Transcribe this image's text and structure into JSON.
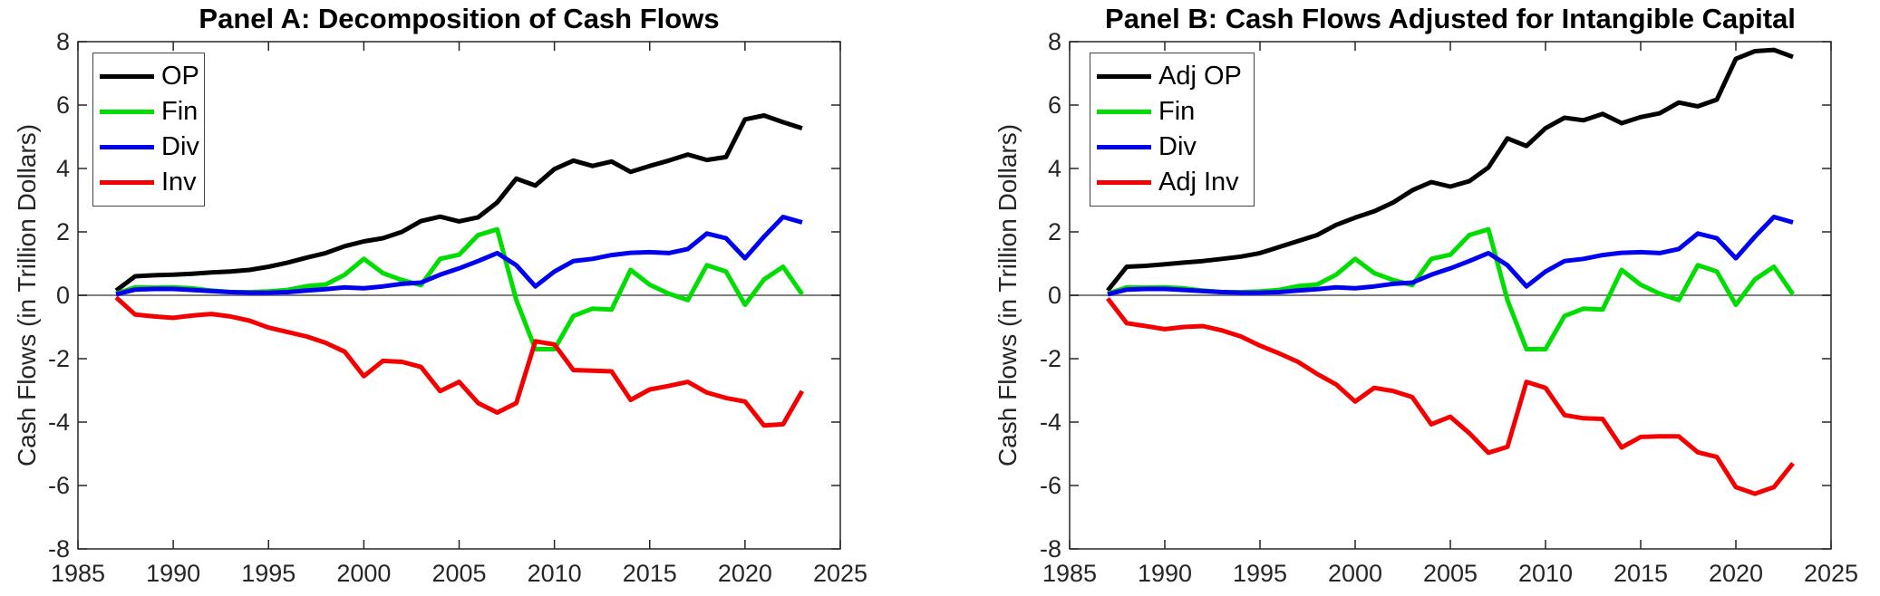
{
  "figure": {
    "background": "#ffffff",
    "axis_color": "#262626",
    "zero_line_color": "#808080",
    "ylabel": "Cash Flows (in Trillion Dollars)"
  },
  "chart_data": [
    {
      "type": "line",
      "panel": "A",
      "title": "Panel A: Decomposition of Cash Flows",
      "xlabel": "",
      "ylabel": "Cash Flows (in Trillion Dollars)",
      "xlim": [
        1985,
        2025
      ],
      "ylim": [
        -8,
        8
      ],
      "xticks": [
        1985,
        1990,
        1995,
        2000,
        2005,
        2010,
        2015,
        2020,
        2025
      ],
      "yticks": [
        -8,
        -6,
        -4,
        -2,
        0,
        2,
        4,
        6,
        8
      ],
      "grid": false,
      "zero_line": true,
      "legend_position": "top-left",
      "x": [
        1987,
        1988,
        1989,
        1990,
        1991,
        1992,
        1993,
        1994,
        1995,
        1996,
        1997,
        1998,
        1999,
        2000,
        2001,
        2002,
        2003,
        2004,
        2005,
        2006,
        2007,
        2008,
        2009,
        2010,
        2011,
        2012,
        2013,
        2014,
        2015,
        2016,
        2017,
        2018,
        2019,
        2020,
        2021,
        2022,
        2023
      ],
      "series": [
        {
          "name": "OP",
          "color": "#000000",
          "values": [
            0.15,
            0.6,
            0.63,
            0.65,
            0.68,
            0.72,
            0.75,
            0.8,
            0.9,
            1.03,
            1.19,
            1.33,
            1.55,
            1.7,
            1.8,
            2.0,
            2.34,
            2.48,
            2.33,
            2.46,
            2.93,
            3.68,
            3.46,
            3.98,
            4.25,
            4.08,
            4.22,
            3.89,
            4.08,
            4.25,
            4.44,
            4.27,
            4.36,
            5.55,
            5.67,
            5.46,
            5.27
          ]
        },
        {
          "name": "Fin",
          "color": "#00dd00",
          "values": [
            0.05,
            0.25,
            0.24,
            0.25,
            0.22,
            0.15,
            0.1,
            0.1,
            0.12,
            0.17,
            0.29,
            0.34,
            0.65,
            1.15,
            0.7,
            0.48,
            0.32,
            1.15,
            1.28,
            1.9,
            2.08,
            -0.15,
            -1.7,
            -1.7,
            -0.65,
            -0.42,
            -0.45,
            0.8,
            0.33,
            0.05,
            -0.15,
            0.95,
            0.75,
            -0.3,
            0.5,
            0.9,
            0.03
          ]
        },
        {
          "name": "Div",
          "color": "#0000f0",
          "values": [
            0.03,
            0.18,
            0.2,
            0.2,
            0.17,
            0.13,
            0.1,
            0.08,
            0.08,
            0.1,
            0.15,
            0.19,
            0.25,
            0.22,
            0.28,
            0.36,
            0.4,
            0.65,
            0.85,
            1.08,
            1.33,
            0.95,
            0.28,
            0.75,
            1.08,
            1.15,
            1.27,
            1.34,
            1.36,
            1.33,
            1.46,
            1.95,
            1.8,
            1.17,
            1.85,
            2.47,
            2.3
          ]
        },
        {
          "name": "Inv",
          "color": "#f50000",
          "values": [
            -0.07,
            -0.61,
            -0.67,
            -0.71,
            -0.64,
            -0.59,
            -0.67,
            -0.8,
            -1.02,
            -1.16,
            -1.3,
            -1.5,
            -1.78,
            -2.55,
            -2.07,
            -2.1,
            -2.26,
            -3.02,
            -2.73,
            -3.4,
            -3.7,
            -3.4,
            -1.45,
            -1.55,
            -2.36,
            -2.38,
            -2.4,
            -3.3,
            -2.97,
            -2.86,
            -2.73,
            -3.07,
            -3.24,
            -3.35,
            -4.11,
            -4.07,
            -3.02
          ]
        }
      ]
    },
    {
      "type": "line",
      "panel": "B",
      "title": "Panel B: Cash Flows Adjusted for Intangible Capital",
      "xlabel": "",
      "ylabel": "Cash Flows (in Trillion Dollars)",
      "xlim": [
        1985,
        2025
      ],
      "ylim": [
        -8,
        8
      ],
      "xticks": [
        1985,
        1990,
        1995,
        2000,
        2005,
        2010,
        2015,
        2020,
        2025
      ],
      "yticks": [
        -8,
        -6,
        -4,
        -2,
        0,
        2,
        4,
        6,
        8
      ],
      "grid": false,
      "zero_line": true,
      "legend_position": "top-left",
      "x": [
        1987,
        1988,
        1989,
        1990,
        1991,
        1992,
        1993,
        1994,
        1995,
        1996,
        1997,
        1998,
        1999,
        2000,
        2001,
        2002,
        2003,
        2004,
        2005,
        2006,
        2007,
        2008,
        2009,
        2010,
        2011,
        2012,
        2013,
        2014,
        2015,
        2016,
        2017,
        2018,
        2019,
        2020,
        2021,
        2022,
        2023
      ],
      "series": [
        {
          "name": "Adj OP",
          "color": "#000000",
          "values": [
            0.15,
            0.9,
            0.93,
            0.98,
            1.03,
            1.08,
            1.15,
            1.22,
            1.33,
            1.52,
            1.71,
            1.9,
            2.22,
            2.45,
            2.65,
            2.93,
            3.31,
            3.57,
            3.43,
            3.6,
            4.03,
            4.95,
            4.71,
            5.27,
            5.6,
            5.52,
            5.72,
            5.43,
            5.62,
            5.74,
            6.08,
            5.96,
            6.17,
            7.46,
            7.7,
            7.74,
            7.52
          ]
        },
        {
          "name": "Fin",
          "color": "#00dd00",
          "values": [
            0.05,
            0.25,
            0.24,
            0.25,
            0.22,
            0.15,
            0.1,
            0.1,
            0.12,
            0.17,
            0.29,
            0.34,
            0.65,
            1.15,
            0.7,
            0.48,
            0.32,
            1.15,
            1.28,
            1.9,
            2.08,
            -0.15,
            -1.7,
            -1.7,
            -0.65,
            -0.42,
            -0.45,
            0.8,
            0.33,
            0.05,
            -0.15,
            0.95,
            0.75,
            -0.3,
            0.5,
            0.9,
            0.03
          ]
        },
        {
          "name": "Div",
          "color": "#0000f0",
          "values": [
            0.03,
            0.18,
            0.2,
            0.2,
            0.17,
            0.13,
            0.1,
            0.08,
            0.08,
            0.1,
            0.15,
            0.19,
            0.25,
            0.22,
            0.28,
            0.36,
            0.4,
            0.65,
            0.85,
            1.08,
            1.33,
            0.95,
            0.28,
            0.75,
            1.08,
            1.15,
            1.27,
            1.34,
            1.36,
            1.33,
            1.46,
            1.95,
            1.8,
            1.17,
            1.85,
            2.47,
            2.3
          ]
        },
        {
          "name": "Adj Inv",
          "color": "#f50000",
          "values": [
            -0.1,
            -0.88,
            -0.97,
            -1.07,
            -1.0,
            -0.97,
            -1.11,
            -1.3,
            -1.59,
            -1.83,
            -2.1,
            -2.48,
            -2.81,
            -3.35,
            -2.92,
            -3.02,
            -3.21,
            -4.07,
            -3.83,
            -4.35,
            -4.97,
            -4.78,
            -2.73,
            -2.92,
            -3.78,
            -3.88,
            -3.9,
            -4.8,
            -4.47,
            -4.45,
            -4.45,
            -4.95,
            -5.1,
            -6.05,
            -6.26,
            -6.05,
            -5.3
          ]
        }
      ]
    }
  ]
}
